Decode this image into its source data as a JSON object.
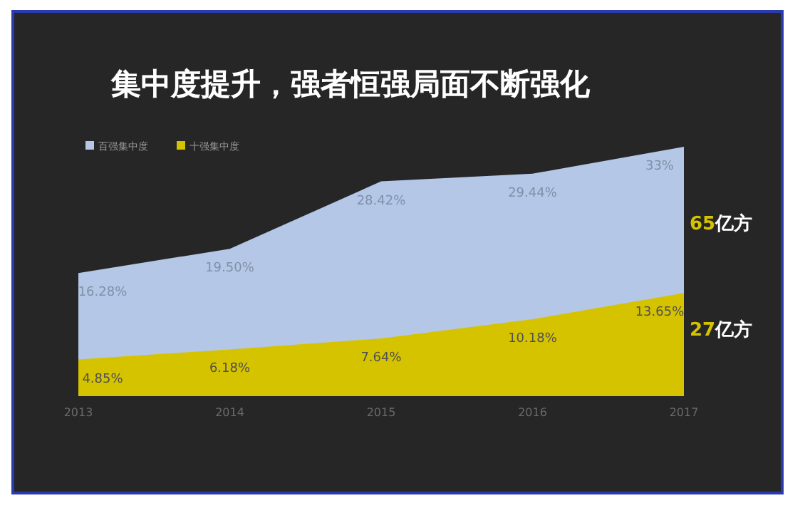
{
  "chart_data": {
    "type": "area",
    "title": "集中度提升，强者恒强局面不断强化",
    "categories": [
      "2013",
      "2014",
      "2015",
      "2016",
      "2017"
    ],
    "series": [
      {
        "name": "百强集中度",
        "color": "#b4c7e7",
        "values": [
          16.28,
          19.5,
          28.42,
          29.44,
          33
        ],
        "value_labels": [
          "16.28%",
          "19.50%",
          "28.42%",
          "29.44%",
          "33%"
        ]
      },
      {
        "name": "十强集中度",
        "color": "#d6c300",
        "values": [
          4.85,
          6.18,
          7.64,
          10.18,
          13.65
        ],
        "value_labels": [
          "4.85%",
          "6.18%",
          "7.64%",
          "10.18%",
          "13.65%"
        ]
      }
    ],
    "legend": "top left",
    "annotations": [
      "65亿方",
      "27亿方"
    ]
  }
}
